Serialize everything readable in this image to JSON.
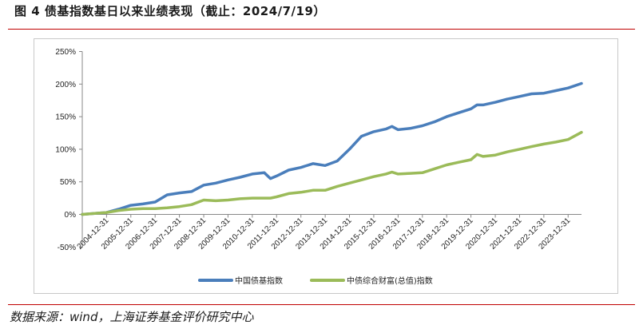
{
  "figure": {
    "title": "图 4 债基指数基日以来业绩表现（截止：2024/7/19）",
    "source": "数据来源：wind，上海证券基金评价研究中心"
  },
  "chart_data": {
    "type": "line",
    "yticks": [
      "250%",
      "200%",
      "150%",
      "100%",
      "50%",
      "0%",
      "-50%"
    ],
    "ylim": [
      -50,
      250
    ],
    "grid": false,
    "legend_position": "bottom",
    "x_tick_labels": [
      "2004-12-31",
      "2005-12-31",
      "2006-12-31",
      "2007-12-31",
      "2008-12-31",
      "2009-12-31",
      "2010-12-31",
      "2011-12-31",
      "2012-12-31",
      "2013-12-31",
      "2014-12-31",
      "2015-12-31",
      "2016-12-31",
      "2017-12-31",
      "2018-12-31",
      "2019-12-31",
      "2020-12-31",
      "2021-12-31",
      "2022-12-31",
      "2023-12-31"
    ],
    "x": [
      "2004-01-01",
      "2004-12-31",
      "2005-06-30",
      "2005-12-31",
      "2006-06-30",
      "2006-12-31",
      "2007-06-30",
      "2007-12-31",
      "2008-06-30",
      "2008-12-31",
      "2009-06-30",
      "2009-12-31",
      "2010-06-30",
      "2010-12-31",
      "2011-06-30",
      "2011-09-30",
      "2011-12-31",
      "2012-06-30",
      "2012-12-31",
      "2013-06-30",
      "2013-12-31",
      "2014-06-30",
      "2014-12-31",
      "2015-06-30",
      "2015-12-31",
      "2016-06-30",
      "2016-09-30",
      "2016-12-31",
      "2017-06-30",
      "2017-12-31",
      "2018-06-30",
      "2018-12-31",
      "2019-06-30",
      "2019-12-31",
      "2020-03-31",
      "2020-06-30",
      "2020-12-31",
      "2021-06-30",
      "2021-12-31",
      "2022-06-30",
      "2022-12-31",
      "2023-06-30",
      "2023-12-31",
      "2024-07-19"
    ],
    "series": [
      {
        "name": "中国债基指数",
        "color": "#4a7ebb",
        "values": [
          0,
          3,
          8,
          14,
          16,
          19,
          30,
          33,
          35,
          45,
          48,
          53,
          57,
          62,
          64,
          55,
          59,
          68,
          72,
          78,
          75,
          82,
          100,
          120,
          127,
          131,
          135,
          130,
          132,
          136,
          142,
          150,
          156,
          162,
          168,
          168,
          172,
          177,
          181,
          185,
          186,
          190,
          194,
          201
        ]
      },
      {
        "name": "中债综合财富(总值)指数",
        "color": "#9bbb59",
        "values": [
          0,
          3,
          6,
          8,
          9,
          9,
          10,
          12,
          15,
          22,
          21,
          22,
          24,
          25,
          25,
          25,
          27,
          32,
          34,
          37,
          37,
          43,
          48,
          53,
          58,
          62,
          65,
          62,
          63,
          64,
          70,
          76,
          80,
          84,
          92,
          89,
          91,
          96,
          100,
          104,
          108,
          111,
          115,
          126
        ]
      }
    ]
  }
}
